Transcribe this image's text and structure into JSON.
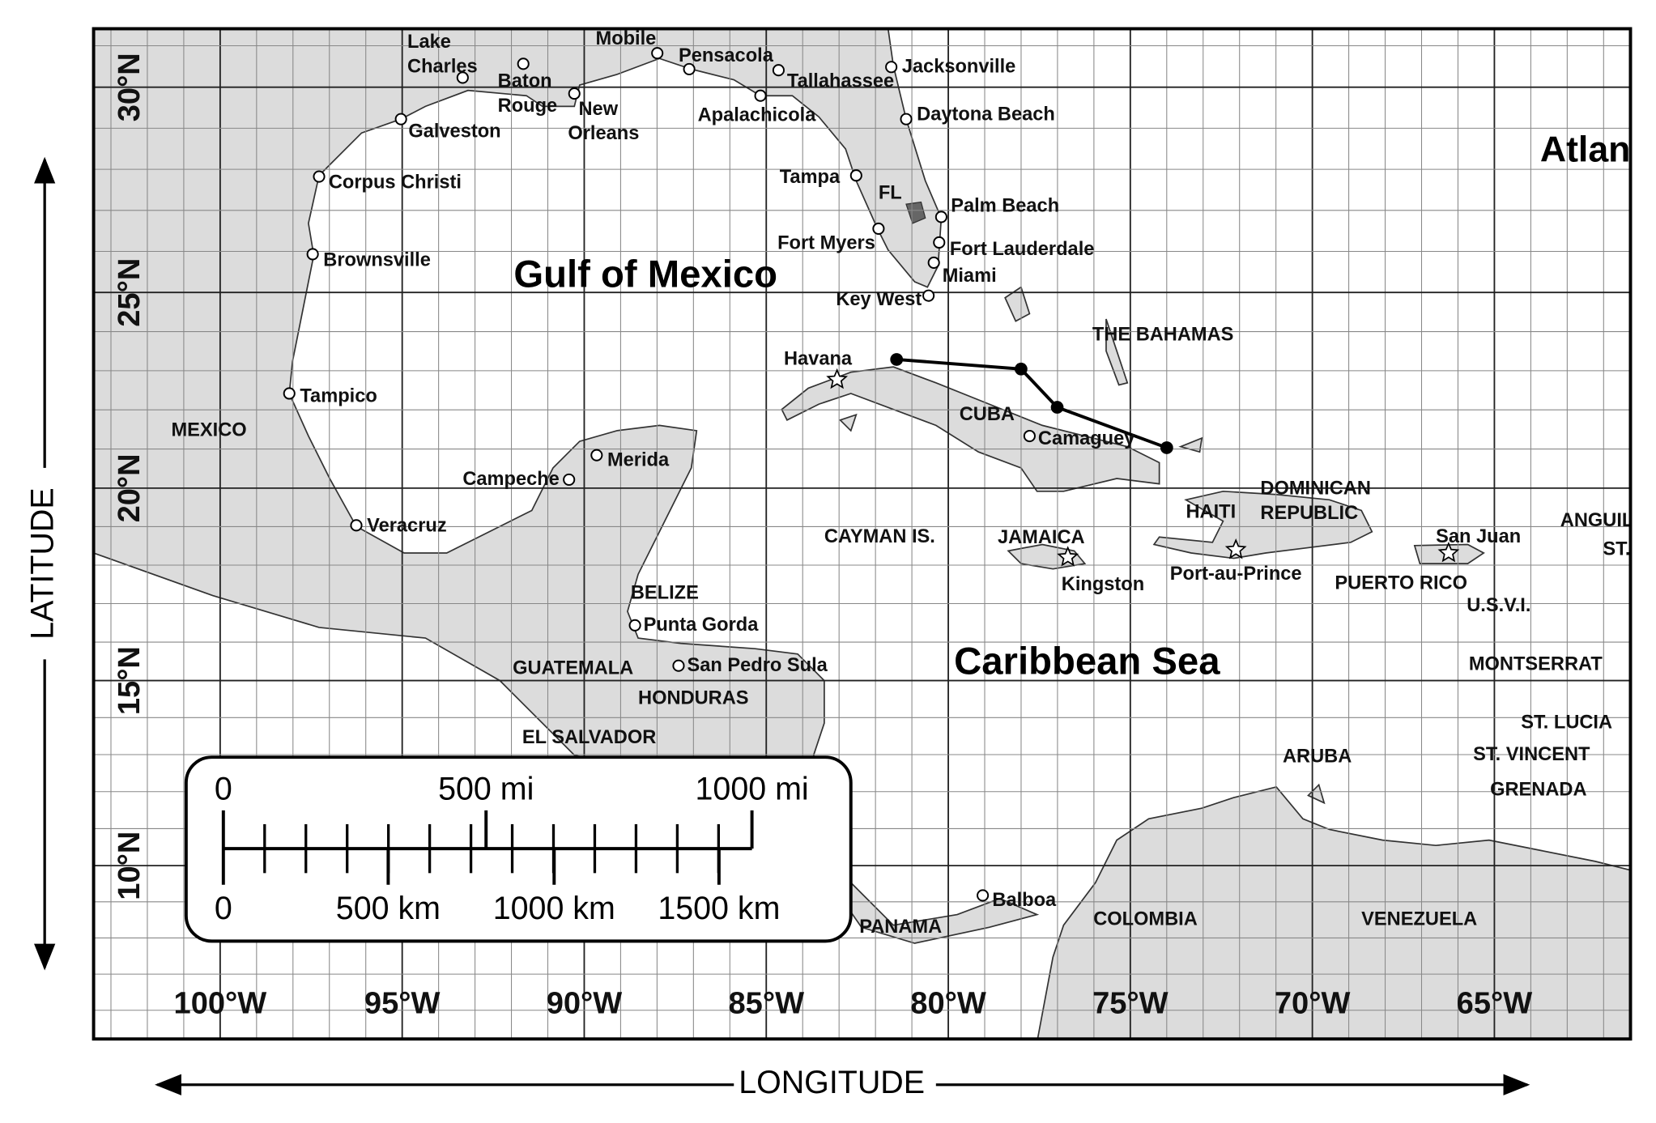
{
  "water_labels": [
    "Gulf of Mexico",
    "Caribbean Sea",
    "Atlan"
  ],
  "region_labels": [
    [
      "FL"
    ],
    [
      "THE BAHAMAS"
    ],
    [
      "CUBA"
    ],
    [
      "MEXICO"
    ],
    [
      "DOMINICAN",
      "REPUBLIC"
    ],
    [
      "HAITI"
    ],
    [
      "CAYMAN IS."
    ],
    [
      "JAMAICA"
    ],
    [
      "BELIZE"
    ],
    [
      "GUATEMALA"
    ],
    [
      "HONDURAS"
    ],
    [
      "EL SALVADOR"
    ],
    [
      "PUERTO RICO"
    ],
    [
      "ANGUIL"
    ],
    [
      "ST."
    ],
    [
      "U.S.V.I."
    ],
    [
      "MONTSERRAT"
    ],
    [
      "ST. LUCIA"
    ],
    [
      "ST. VINCENT"
    ],
    [
      "GRENADA"
    ],
    [
      "ARUBA"
    ],
    [
      "COLOMBIA"
    ],
    [
      "VENEZUELA"
    ],
    [
      "PANAMA"
    ]
  ],
  "cities": [
    [
      "Lake",
      "Charles"
    ],
    [
      "Mobile"
    ],
    [
      "Pensacola"
    ],
    [
      "Baton",
      "Rouge"
    ],
    [
      "New",
      "Orleans"
    ],
    [
      "Tallahassee"
    ],
    [
      "Jacksonville"
    ],
    [
      "Apalachicola"
    ],
    [
      "Daytona Beach"
    ],
    [
      "Galveston"
    ],
    [
      "Corpus Christi"
    ],
    [
      "Tampa"
    ],
    [
      "Palm Beach"
    ],
    [
      "Fort Myers"
    ],
    [
      "Fort Lauderdale"
    ],
    [
      "Brownsville"
    ],
    [
      "Miami"
    ],
    [
      "Key West"
    ],
    [
      "Tampico"
    ],
    [
      "Merida"
    ],
    [
      "Campeche"
    ],
    [
      "Veracruz"
    ],
    [
      "Punta Gorda"
    ],
    [
      "San Pedro Sula"
    ],
    [
      "Balboa"
    ],
    [
      "Camaguey"
    ]
  ],
  "capitals": [
    "Havana",
    "Kingston",
    "Port-au-Prince",
    "San Juan"
  ],
  "longitude_labels": [
    "100°W",
    "95°W",
    "90°W",
    "85°W",
    "80°W",
    "75°W",
    "70°W",
    "65°W"
  ],
  "latitude_labels": [
    "30°N",
    "25°N",
    "20°N",
    "15°N",
    "10°N"
  ],
  "axis_titles": {
    "x": "LONGITUDE",
    "y": "LATITUDE"
  },
  "scale_bar": {
    "miles": [
      "0",
      "500 mi",
      "1000 mi"
    ],
    "kilometers": [
      "0",
      "500 km",
      "1000 km",
      "1500 km"
    ]
  }
}
